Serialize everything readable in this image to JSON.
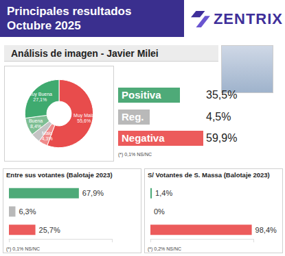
{
  "header": {
    "title": "Principales resultados",
    "subtitle": "Octubre 2025",
    "brand": "ZENTRIX"
  },
  "section_title": "Análisis de imagen - Javier Milei",
  "summary": {
    "items": [
      {
        "label": "Positiva",
        "value": 35.5,
        "value_label": "35,5%",
        "color": "#4eaa78"
      },
      {
        "label": "Reg.",
        "value": 4.5,
        "value_label": "4,5%",
        "color": "#b9b9b9"
      },
      {
        "label": "Negativa",
        "value": 59.9,
        "value_label": "59,9%",
        "color": "#ec5b5b"
      }
    ],
    "annotation": "(*) 0,1% NS/NC"
  },
  "chart_data": [
    {
      "type": "pie",
      "categories": [
        "Muy Mala",
        "Malo",
        null,
        "Buena",
        "Muy Buena"
      ],
      "values": [
        55.6,
        4.3,
        4.5,
        8.4,
        27.1
      ],
      "value_labels": [
        "55,6%",
        "4,3%",
        null,
        "8,4%",
        "27,1%"
      ],
      "colors": [
        "#e84c4c",
        "#f08a8a",
        "#c4c4c4",
        "#7fbf94",
        "#3faa6f"
      ],
      "data_labels": true
    },
    {
      "type": "bar",
      "title": "Entre sus votantes (Balotaje 2023)",
      "categories": [
        null,
        null,
        null
      ],
      "values": [
        67.9,
        6.3,
        25.7
      ],
      "value_labels": [
        "67,9%",
        "6,3%",
        "25,7%"
      ],
      "colors": [
        "#4eaa78",
        "#b9b9b9",
        "#ec5b5b"
      ],
      "orientation": "horizontal",
      "xlim": [
        0,
        100
      ],
      "xticks": [
        0,
        100
      ],
      "tick_labels": false,
      "grid": false,
      "data_labels": true,
      "annotation": "(*) 0,1% NS/NC"
    },
    {
      "type": "bar",
      "title": "S/ Votantes de S. Massa (Balotaje 2023)",
      "categories": [
        null,
        null,
        null
      ],
      "values": [
        1.4,
        0,
        98.4
      ],
      "value_labels": [
        "1,4%",
        "0%",
        "98,4%"
      ],
      "colors": [
        "#4eaa78",
        "#b9b9b9",
        "#ec5b5b"
      ],
      "orientation": "horizontal",
      "xlim": [
        0,
        100
      ],
      "xticks": [
        0,
        100
      ],
      "tick_labels": false,
      "grid": false,
      "data_labels": true,
      "annotation": "(*) 0,2% NS/NC"
    }
  ]
}
